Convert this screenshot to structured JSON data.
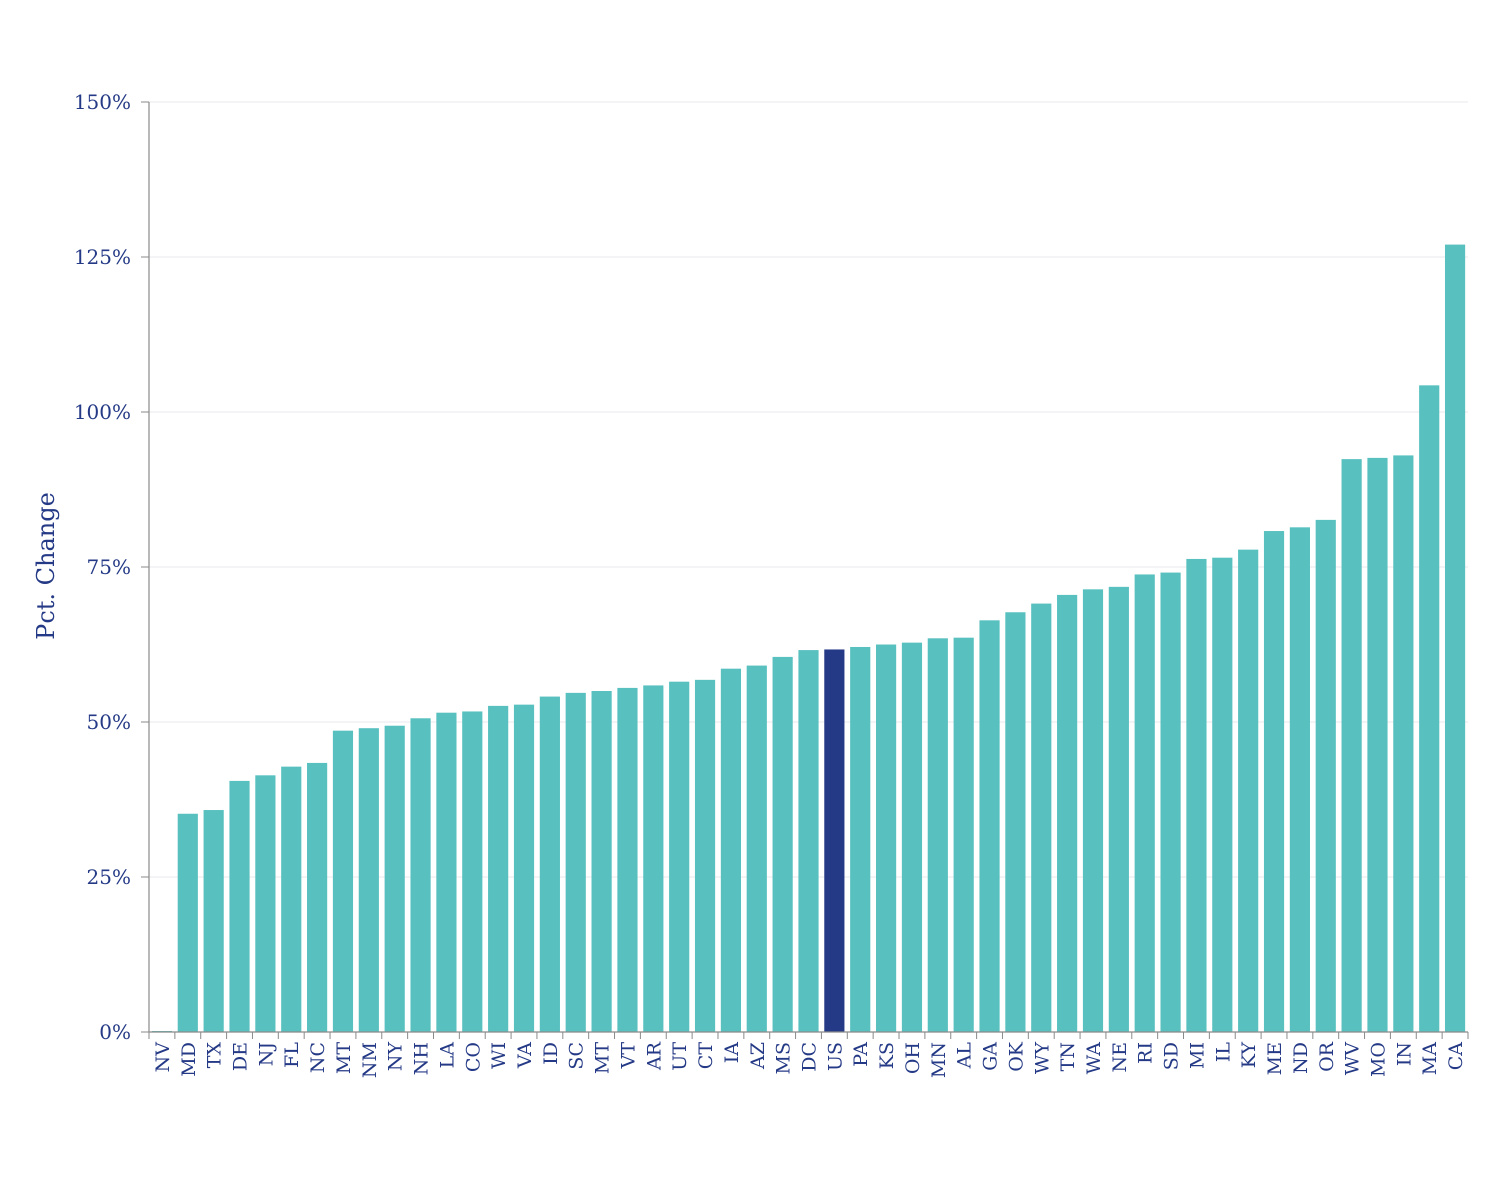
{
  "colors": {
    "bar": "#58c0bf",
    "highlight": "#253a86",
    "text": "#253a86",
    "grid": "#e9eaef",
    "axis": "#8a8a8a"
  },
  "chart_data": {
    "type": "bar",
    "ylabel": "Pct. Change",
    "ylim": [
      0,
      150
    ],
    "yticks": [
      0,
      25,
      50,
      75,
      100,
      125,
      150
    ],
    "ytick_labels": [
      "0%",
      "25%",
      "50%",
      "75%",
      "100%",
      "125%",
      "150%"
    ],
    "grid": "horizontal",
    "highlight_category": "US",
    "categories": [
      "NV",
      "MD",
      "TX",
      "DE",
      "NJ",
      "FL",
      "NC",
      "MT",
      "NM",
      "NY",
      "NH",
      "LA",
      "CO",
      "WI",
      "VA",
      "ID",
      "SC",
      "MT",
      "VT",
      "AR",
      "UT",
      "CT",
      "IA",
      "AZ",
      "MS",
      "DC",
      "US",
      "PA",
      "KS",
      "OH",
      "MN",
      "AL",
      "GA",
      "OK",
      "WY",
      "TN",
      "WA",
      "NE",
      "RI",
      "SD",
      "MI",
      "IL",
      "KY",
      "ME",
      "ND",
      "OR",
      "WV",
      "MO",
      "IN",
      "MA",
      "CA"
    ],
    "values": [
      0,
      35.2,
      35.8,
      40.5,
      41.4,
      42.8,
      43.4,
      48.6,
      49.0,
      49.4,
      50.6,
      51.5,
      51.7,
      52.6,
      52.8,
      54.1,
      54.7,
      55.0,
      55.5,
      55.9,
      56.5,
      56.8,
      58.6,
      59.1,
      60.5,
      61.6,
      61.7,
      62.1,
      62.5,
      62.8,
      63.5,
      63.6,
      66.4,
      67.7,
      69.1,
      70.5,
      71.4,
      71.8,
      73.8,
      74.1,
      76.3,
      76.5,
      77.8,
      80.8,
      81.4,
      82.6,
      92.4,
      92.6,
      93.0,
      104.3,
      127.0
    ]
  }
}
